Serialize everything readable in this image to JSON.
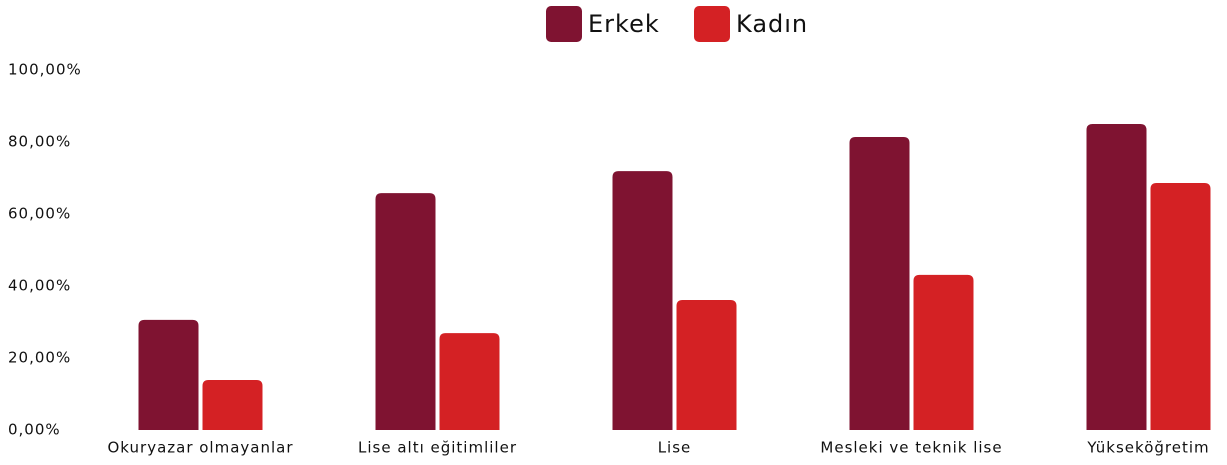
{
  "chart_data": {
    "type": "bar",
    "categories": [
      "Okuryazar olmayanlar",
      "Lise altı eğitimliler",
      "Lise",
      "Mesleki ve teknik lise",
      "Yükseköğretim"
    ],
    "series": [
      {
        "name": "Erkek",
        "color": "#7f1331",
        "values": [
          30.6,
          65.8,
          71.9,
          81.4,
          85.0
        ]
      },
      {
        "name": "Kadın",
        "color": "#d42124",
        "values": [
          13.9,
          26.9,
          36.1,
          43.1,
          68.6
        ]
      }
    ],
    "ylim": [
      0,
      100
    ],
    "yticks": [
      {
        "value": 0,
        "label": "0,00%"
      },
      {
        "value": 20,
        "label": "20,00%"
      },
      {
        "value": 40,
        "label": "40,00%"
      },
      {
        "value": 60,
        "label": "60,00%"
      },
      {
        "value": 80,
        "label": "80,00%"
      },
      {
        "value": 100,
        "label": "100,00%"
      }
    ],
    "legend": "top"
  }
}
